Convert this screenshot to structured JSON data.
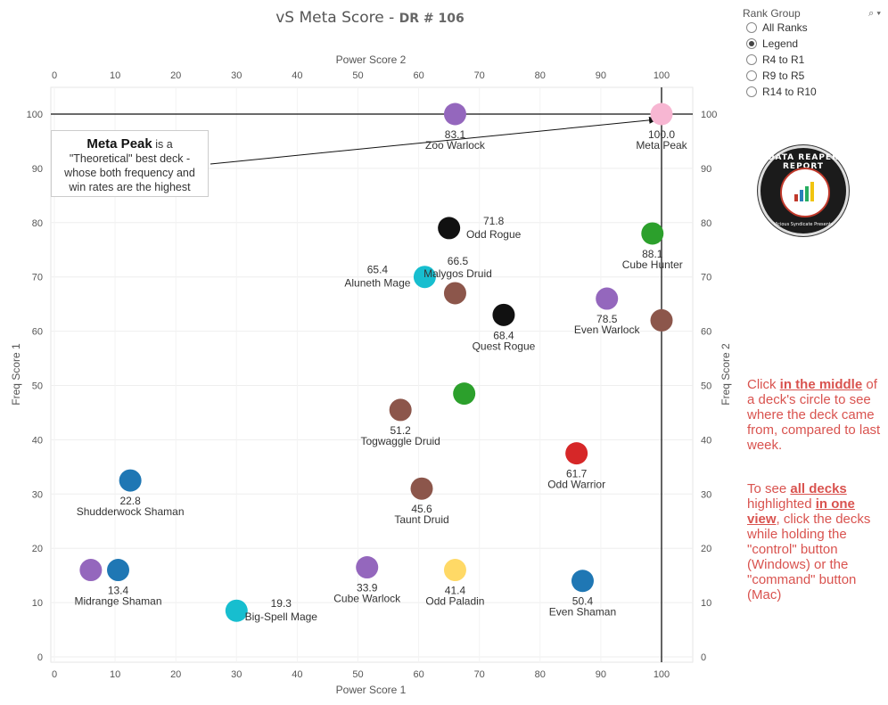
{
  "header": {
    "title": "vS Meta Score - ",
    "subtitle": "DR # 106"
  },
  "filter": {
    "title": "Rank Group",
    "options": [
      {
        "label": "All Ranks",
        "selected": false
      },
      {
        "label": "Legend",
        "selected": true
      },
      {
        "label": "R4 to R1",
        "selected": false
      },
      {
        "label": "R9 to R5",
        "selected": false
      },
      {
        "label": "R14 to R10",
        "selected": false
      }
    ]
  },
  "annotation": {
    "bold": "Meta Peak",
    "text1": " is a",
    "text2": "\"Theoretical\" best deck -",
    "text3": "whose both frequency and",
    "text4": "win rates are the highest"
  },
  "logo": {
    "text": "DATA REAPER REPORT",
    "subtext": "Vicious Syndicate Presents"
  },
  "instructions": {
    "p1_prefix": "Click ",
    "p1_bold": "in the middle",
    "p1_suffix": " of a deck's circle to see where the deck came from, compared to last week.",
    "p2_prefix": "To see ",
    "p2_bold1": "all decks",
    "p2_mid": " highlighted ",
    "p2_bold2": "in one view",
    "p2_suffix": ", click the decks while holding the \"control\" button (Windows) or the \"command\" button (Mac)"
  },
  "chart_data": {
    "type": "scatter",
    "xlabel_bottom": "Power Score 1",
    "xlabel_top": "Power Score 2",
    "ylabel_left": "Freq Score 1",
    "ylabel_right": "Freq Score 2",
    "xlim": [
      0,
      100
    ],
    "ylim": [
      0,
      100
    ],
    "xticks": [
      0,
      10,
      20,
      30,
      40,
      50,
      60,
      70,
      80,
      90,
      100
    ],
    "yticks": [
      0,
      10,
      20,
      30,
      40,
      50,
      60,
      70,
      80,
      90,
      100
    ],
    "grid": true,
    "reference_lines": {
      "x": 100,
      "y": 100
    },
    "points": [
      {
        "name": "Zoo Warlock",
        "score": "83.1",
        "x": 66,
        "y": 100,
        "color": "#9467bd",
        "label": "below"
      },
      {
        "name": "Meta Peak",
        "score": "100.0",
        "x": 100,
        "y": 100,
        "color": "#f7b6d2",
        "label": "below"
      },
      {
        "name": "Odd Rogue",
        "score": "71.8",
        "x": 65,
        "y": 79,
        "color": "#111111",
        "label": "right"
      },
      {
        "name": "Cube Hunter",
        "score": "88.1",
        "x": 98.5,
        "y": 78,
        "color": "#2ca02c",
        "label": "below"
      },
      {
        "name": "Aluneth Mage",
        "score": "65.4",
        "x": 61,
        "y": 70,
        "color": "#17becf",
        "label": "left"
      },
      {
        "name": "Malygos Druid",
        "score": "66.5",
        "x": 66,
        "y": 67,
        "color": "#8c564b",
        "label": "above"
      },
      {
        "name": "Even Warlock",
        "score": "78.5",
        "x": 91,
        "y": 66,
        "color": "#9467bd",
        "label": "below"
      },
      {
        "name": "Quest Rogue",
        "score": "68.4",
        "x": 74,
        "y": 63,
        "color": "#111111",
        "label": "below"
      },
      {
        "name": "",
        "score": "",
        "x": 100,
        "y": 62,
        "color": "#8c564b",
        "label": "none"
      },
      {
        "name": "",
        "score": "",
        "x": 67.5,
        "y": 48.5,
        "color": "#2ca02c",
        "label": "none"
      },
      {
        "name": "Togwaggle Druid",
        "score": "51.2",
        "x": 57,
        "y": 45.5,
        "color": "#8c564b",
        "label": "below"
      },
      {
        "name": "Odd Warrior",
        "score": "61.7",
        "x": 86,
        "y": 37.5,
        "color": "#d62728",
        "label": "below"
      },
      {
        "name": "Shudderwock Shaman",
        "score": "22.8",
        "x": 12.5,
        "y": 32.5,
        "color": "#1f77b4",
        "label": "below"
      },
      {
        "name": "Taunt Druid",
        "score": "45.6",
        "x": 60.5,
        "y": 31,
        "color": "#8c564b",
        "label": "below"
      },
      {
        "name": "",
        "score": "",
        "x": 6,
        "y": 16,
        "color": "#9467bd",
        "label": "none"
      },
      {
        "name": "Midrange Shaman",
        "score": "13.4",
        "x": 10.5,
        "y": 16,
        "color": "#1f77b4",
        "label": "below"
      },
      {
        "name": "Cube Warlock",
        "score": "33.9",
        "x": 51.5,
        "y": 16.5,
        "color": "#9467bd",
        "label": "below"
      },
      {
        "name": "Odd Paladin",
        "score": "41.4",
        "x": 66,
        "y": 16,
        "color": "#ffd966",
        "label": "below"
      },
      {
        "name": "Even Shaman",
        "score": "50.4",
        "x": 87,
        "y": 14,
        "color": "#1f77b4",
        "label": "below"
      },
      {
        "name": "Big-Spell Mage",
        "score": "19.3",
        "x": 30,
        "y": 8.5,
        "color": "#17becf",
        "label": "right"
      }
    ]
  }
}
